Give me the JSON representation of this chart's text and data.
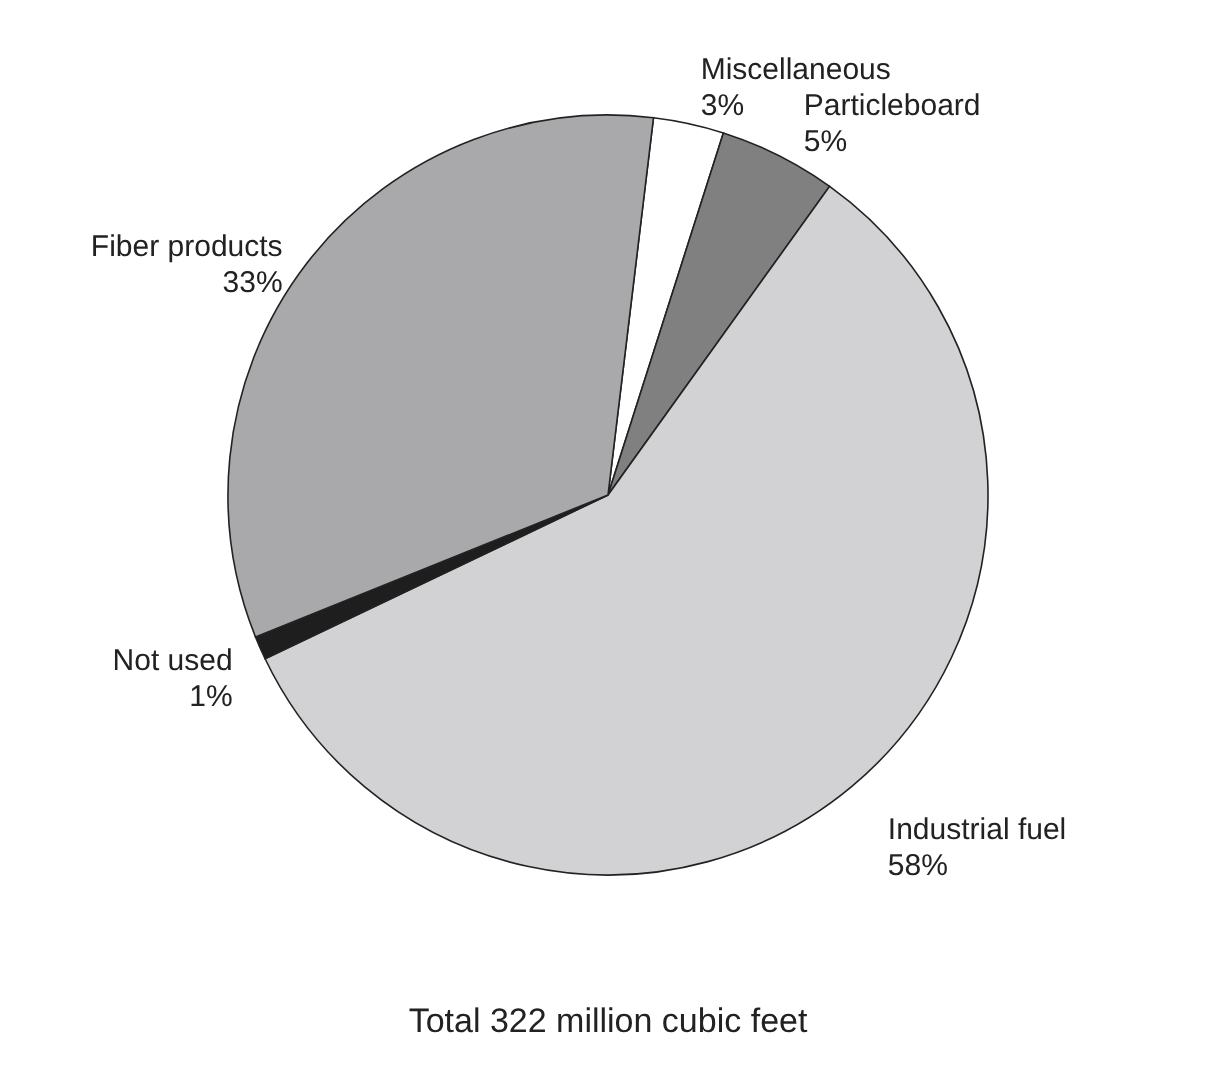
{
  "chart_data": {
    "type": "pie",
    "title": "Total 322 million cubic feet",
    "categories": [
      "Miscellaneous",
      "Particleboard",
      "Industrial fuel",
      "Not used",
      "Fiber products"
    ],
    "values": [
      3,
      5,
      58,
      1,
      33
    ],
    "colors": [
      "#ffffff",
      "#808080",
      "#d2d2d4",
      "#1e1e1e",
      "#a9a9ab"
    ],
    "value_labels": [
      "3%",
      "5%",
      "58%",
      "1%",
      "33%"
    ]
  }
}
